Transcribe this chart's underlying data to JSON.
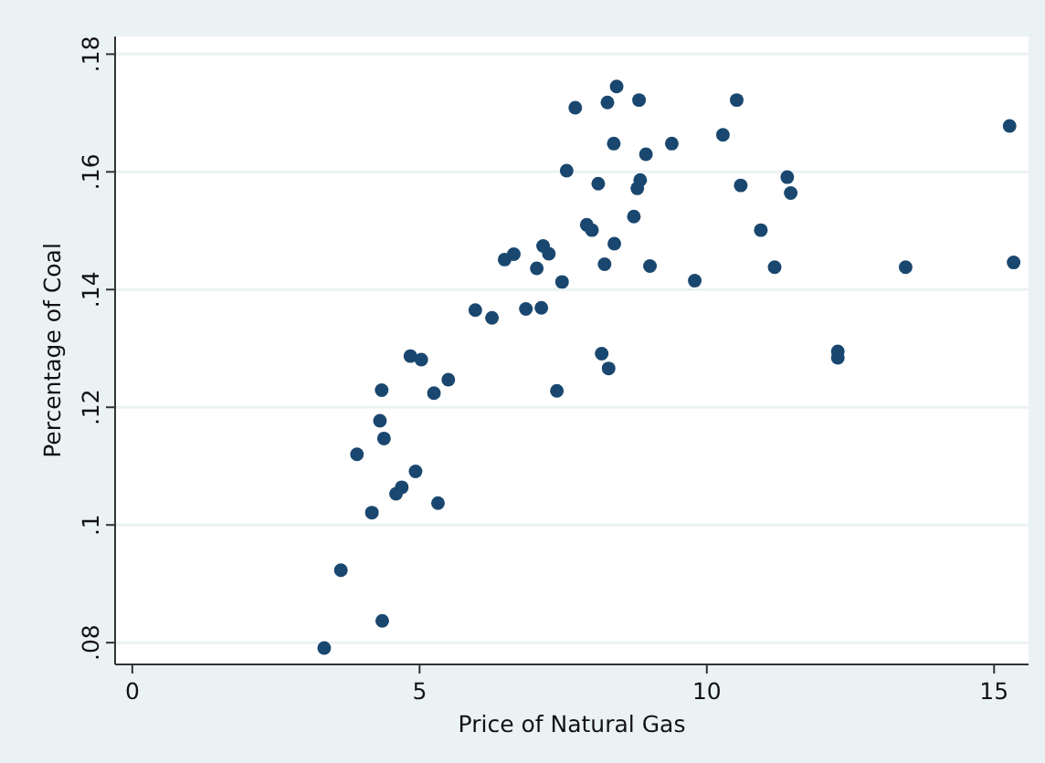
{
  "chart_data": {
    "type": "scatter",
    "xlabel": "Price of Natural Gas",
    "ylabel": "Percentage of Coal",
    "xlim": [
      -0.3,
      15.6
    ],
    "ylim": [
      0.0763,
      0.183
    ],
    "xticks": [
      0,
      5,
      10,
      15
    ],
    "yticks": [
      {
        "value": 0.08,
        "label": ".08"
      },
      {
        "value": 0.1,
        "label": ".1"
      },
      {
        "value": 0.12,
        "label": ".12"
      },
      {
        "value": 0.14,
        "label": ".14"
      },
      {
        "value": 0.16,
        "label": ".16"
      },
      {
        "value": 0.18,
        "label": ".18"
      }
    ],
    "grid": "y",
    "marker": "circle",
    "series": [
      {
        "color": "#1a476f",
        "x": [
          7.71,
          7.56,
          6.48,
          6.64,
          7.15,
          7.25,
          7.04,
          7.48,
          5.97,
          6.26,
          6.85,
          7.12,
          4.84,
          5.03,
          5.5,
          8.43,
          8.27,
          8.82,
          10.52,
          8.38,
          8.94,
          9.39,
          10.28,
          15.27,
          8.11,
          8.84,
          8.79,
          10.59,
          11.4,
          11.46,
          8.73,
          7.91,
          8.0,
          8.39,
          10.94,
          8.22,
          9.01,
          9.79,
          11.18,
          13.46,
          15.34,
          8.17,
          8.29,
          12.28,
          12.28,
          4.34,
          5.25,
          7.39,
          4.31,
          4.38,
          3.91,
          4.93,
          4.69,
          4.59,
          5.32,
          4.17,
          3.63,
          4.35,
          3.34
        ],
        "values": [
          0.1709,
          0.1602,
          0.1451,
          0.146,
          0.1474,
          0.1461,
          0.1436,
          0.1413,
          0.1365,
          0.1352,
          0.1367,
          0.1369,
          0.1287,
          0.1281,
          0.1247,
          0.1745,
          0.1718,
          0.1722,
          0.1722,
          0.1648,
          0.163,
          0.1648,
          0.1663,
          0.1678,
          0.158,
          0.1586,
          0.1572,
          0.1577,
          0.1591,
          0.1564,
          0.1524,
          0.151,
          0.1501,
          0.1478,
          0.1501,
          0.1443,
          0.144,
          0.1415,
          0.1438,
          0.1438,
          0.1446,
          0.1291,
          0.1266,
          0.1295,
          0.1284,
          0.1229,
          0.1224,
          0.1228,
          0.1177,
          0.1147,
          0.112,
          0.1091,
          0.1064,
          0.1053,
          0.1037,
          0.1021,
          0.0923,
          0.0837,
          0.0791
        ]
      }
    ]
  }
}
